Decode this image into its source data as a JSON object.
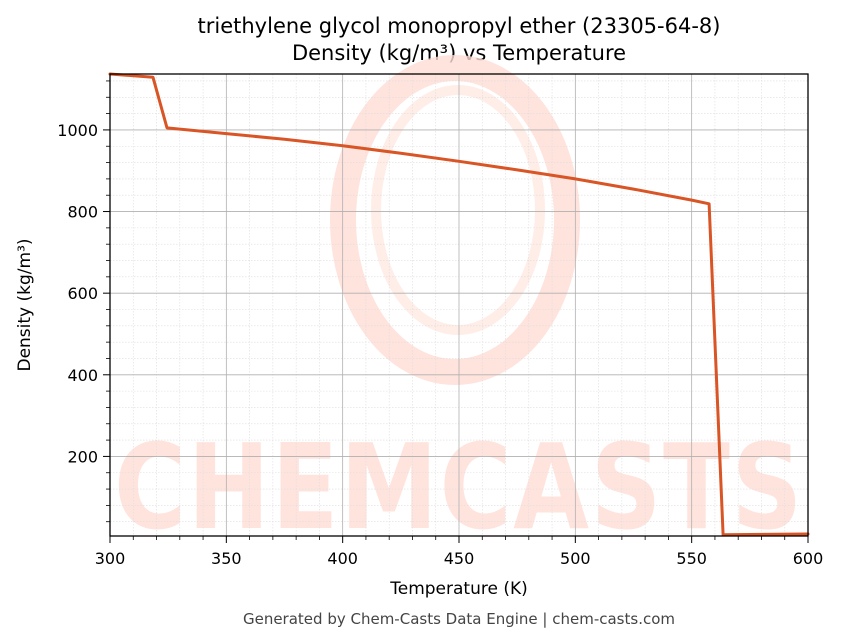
{
  "title_line1": "triethylene glycol monopropyl ether (23305-64-8)",
  "title_line2": "Density (kg/m³) vs Temperature",
  "footer": "Generated by Chem-Casts Data Engine | chem-casts.com",
  "watermark": "CHEMCASTS",
  "colors": {
    "line": "#d95525",
    "watermark": "#ffdcd4",
    "grid_major": "#b0b0b0",
    "grid_minor": "#dddddd"
  },
  "chart_data": {
    "type": "line",
    "title": "triethylene glycol monopropyl ether (23305-64-8)\nDensity (kg/m³) vs Temperature",
    "xlabel": "Temperature (K)",
    "ylabel": "Density (kg/m³)",
    "xlim": [
      300,
      600
    ],
    "ylim": [
      5,
      1137
    ],
    "xticks": [
      300,
      350,
      400,
      450,
      500,
      550,
      600
    ],
    "yticks": [
      200,
      400,
      600,
      800,
      1000
    ],
    "grid": true,
    "series": [
      {
        "x": [
          300,
          318.5,
          324.5,
          350,
          375,
          400,
          425,
          450,
          475,
          500,
          525,
          550,
          557.5,
          563.5,
          600
        ],
        "y": [
          1137,
          1129,
          1005,
          991,
          977,
          961,
          943,
          923,
          902,
          880,
          855,
          828,
          819,
          8,
          10
        ]
      }
    ]
  }
}
